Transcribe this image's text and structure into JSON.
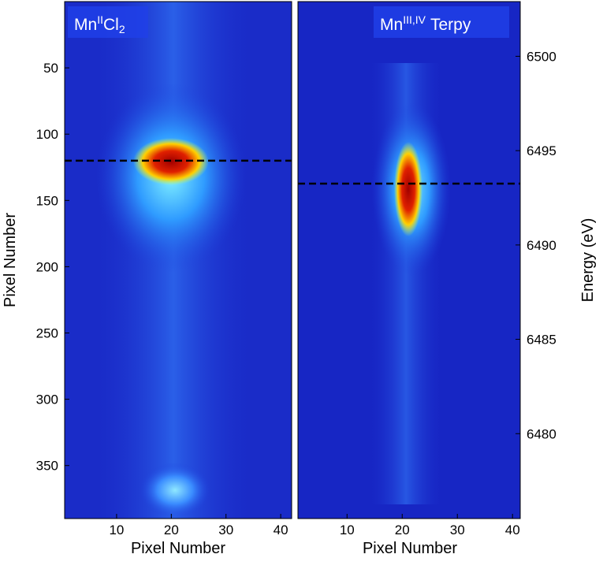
{
  "chart_data": [
    {
      "type": "heatmap",
      "annotation": {
        "base": "Mn",
        "sup": "II",
        "rest": "Cl",
        "sub": "2"
      },
      "xlabel": "Pixel Number",
      "ylabel": "Pixel Number",
      "xlim": [
        0.5,
        42
      ],
      "xticks": [
        10,
        20,
        30,
        40
      ],
      "ylim": [
        390,
        0
      ],
      "yticks": [
        50,
        100,
        150,
        200,
        250,
        300,
        350
      ],
      "y_axis_side": "left",
      "marker_line": 120
    },
    {
      "type": "heatmap",
      "annotation": {
        "base": "Mn",
        "sup": "III,IV",
        "rest": "Terpy"
      },
      "xlabel": "Pixel Number",
      "ylabel": "Energy (eV)",
      "xlim": [
        1.1,
        41.4
      ],
      "xticks": [
        10,
        20,
        30,
        40
      ],
      "ylim": [
        6475.5,
        6502.9
      ],
      "yticks": [
        6480,
        6485,
        6490,
        6495,
        6500
      ],
      "y_axis_side": "right",
      "marker_line": 6493.25
    }
  ]
}
